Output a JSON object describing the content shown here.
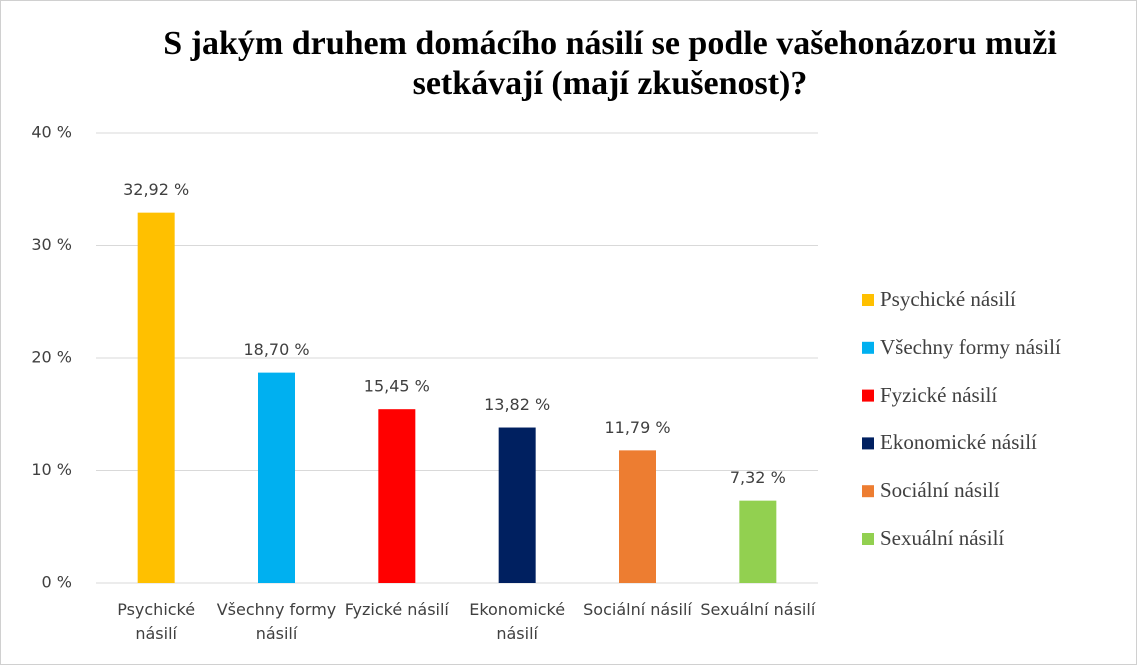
{
  "chart_data": {
    "type": "bar",
    "title": "S jakým druhem domácího násilí se podle vašehonázoru muži setkávají (mají zkušenost)?",
    "categories": [
      "Psychické násilí",
      "Všechny formy násilí",
      "Fyzické násilí",
      "Ekonomické násilí",
      "Sociální násilí",
      "Sexuální násilí"
    ],
    "values": [
      32.92,
      18.7,
      15.45,
      13.82,
      11.79,
      7.32
    ],
    "value_labels": [
      "32,92 %",
      "18,70 %",
      "15,45 %",
      "13,82 %",
      "11,79 %",
      "7,32 %"
    ],
    "colors": [
      "#ffc000",
      "#00b0f0",
      "#ff0000",
      "#002060",
      "#ed7d31",
      "#92d050"
    ],
    "ylim": [
      0,
      40
    ],
    "yticks": [
      {
        "value": 0,
        "label": "0 %"
      },
      {
        "value": 10,
        "label": "10 %"
      },
      {
        "value": 20,
        "label": "20 %"
      },
      {
        "value": 30,
        "label": "30 %"
      },
      {
        "value": 40,
        "label": "40 %"
      }
    ],
    "grid": true,
    "legend": "right"
  }
}
